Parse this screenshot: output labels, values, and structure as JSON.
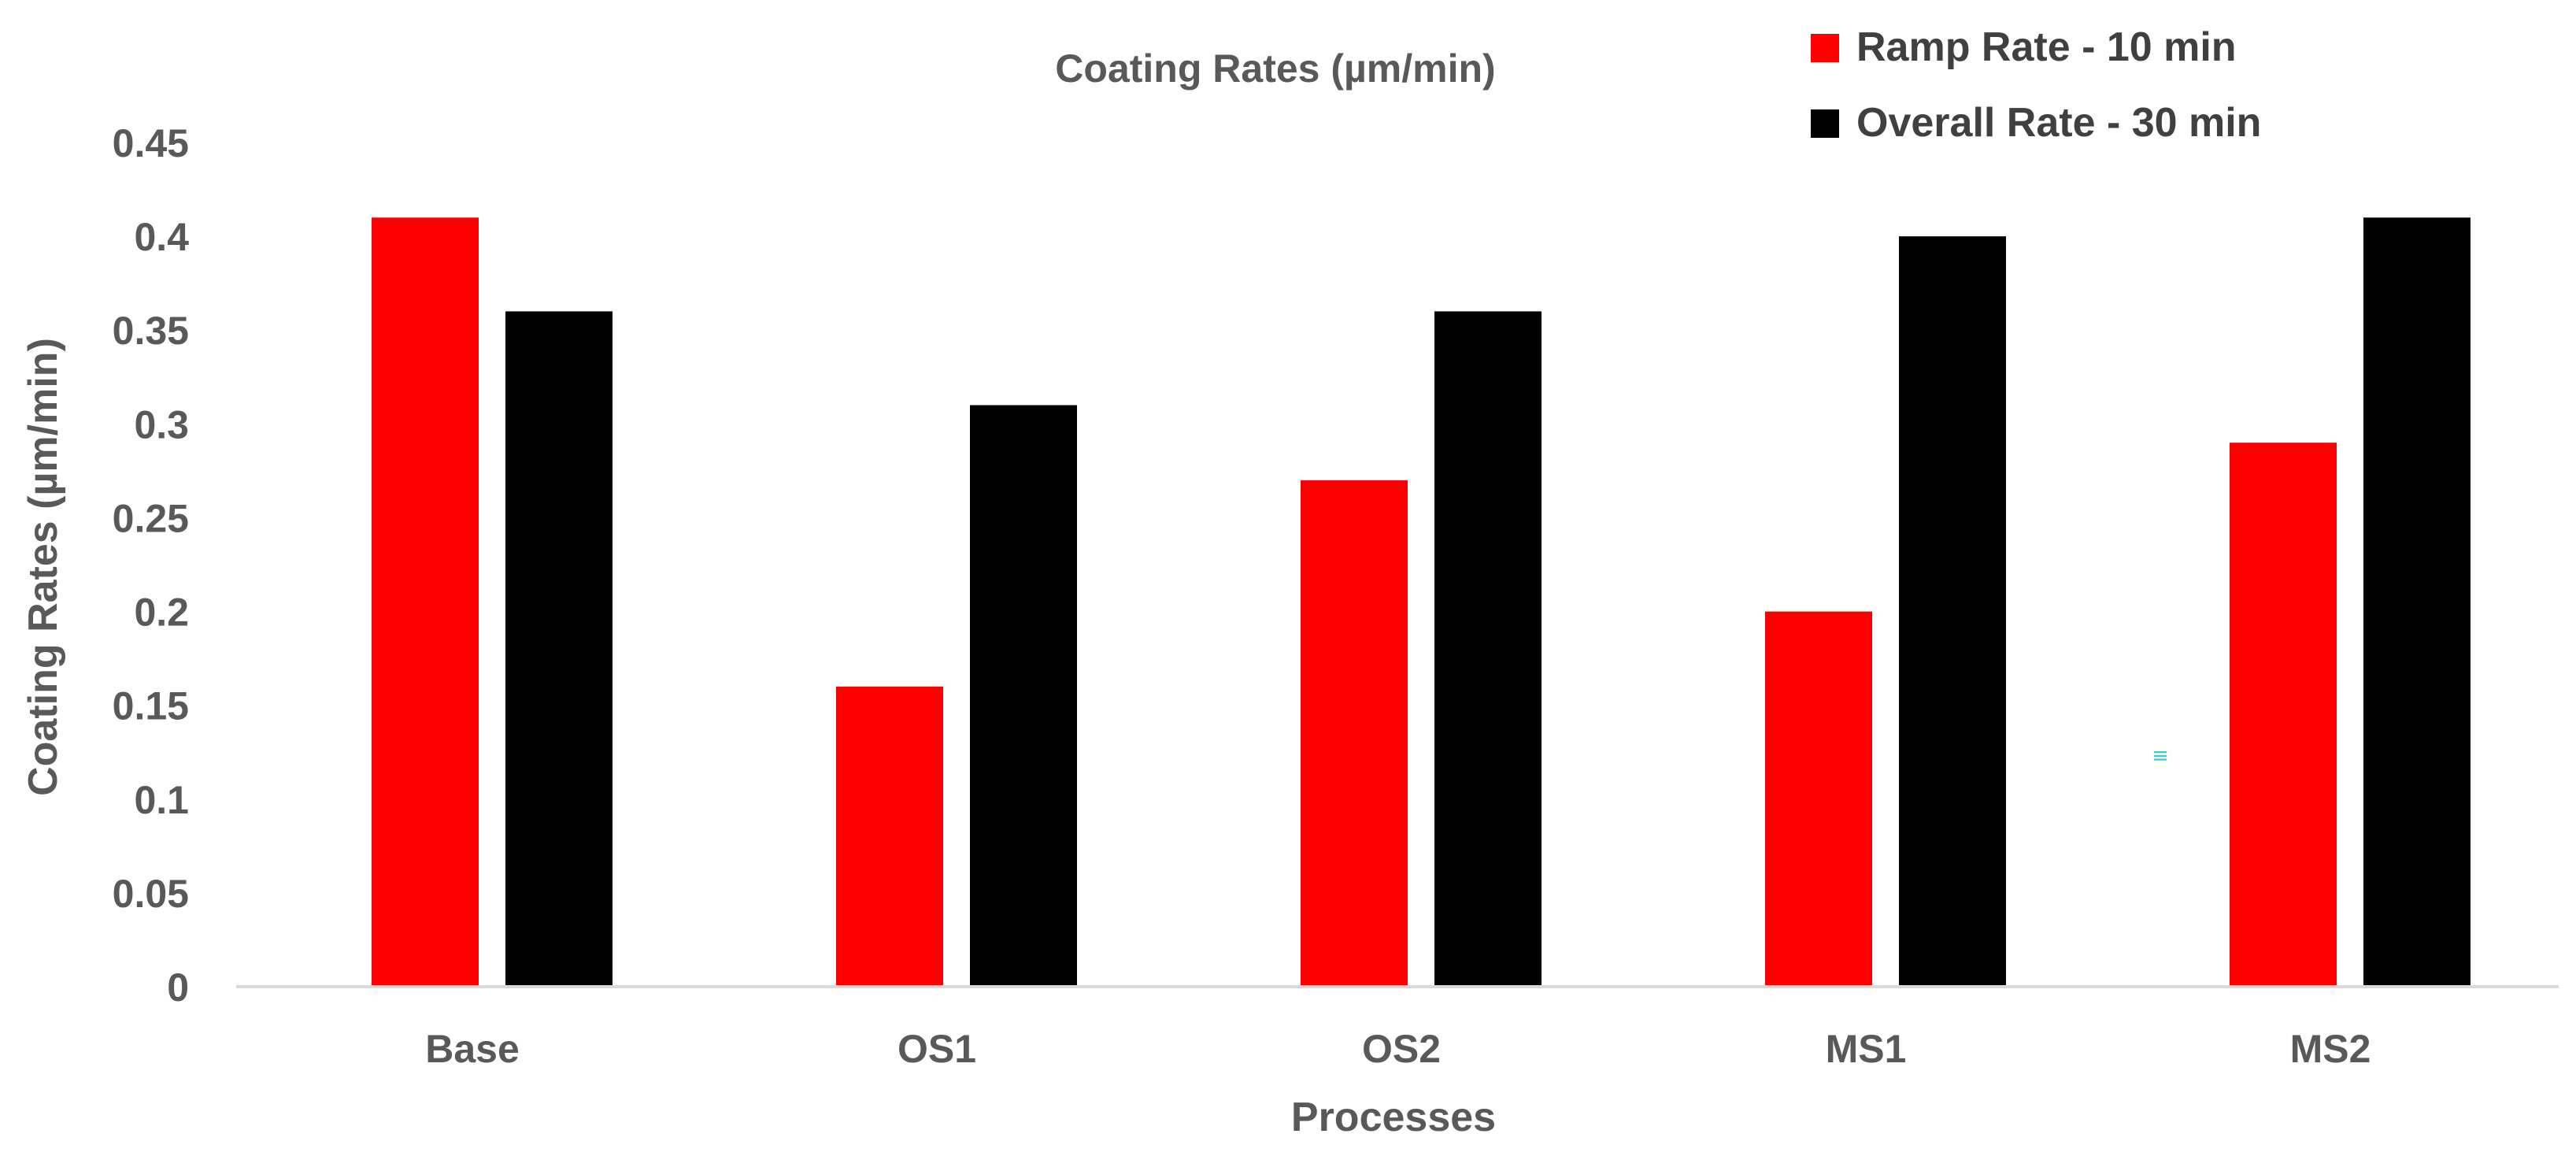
{
  "chart_data": {
    "type": "bar",
    "title": "Coating Rates (µm/min)",
    "xlabel": "Processes",
    "ylabel": "Coating Rates (µm/min)",
    "categories": [
      "Base",
      "OS1",
      "OS2",
      "MS1",
      "MS2"
    ],
    "series": [
      {
        "name": "Ramp Rate - 10 min",
        "color": "#ff0000",
        "values": [
          0.41,
          0.16,
          0.27,
          0.2,
          0.29
        ]
      },
      {
        "name": "Overall Rate - 30 min",
        "color": "#000000",
        "values": [
          0.36,
          0.31,
          0.36,
          0.4,
          0.41
        ]
      }
    ],
    "ylim": [
      0,
      0.45
    ],
    "yticks": [
      "0",
      "0.05",
      "0.1",
      "0.15",
      "0.2",
      "0.25",
      "0.3",
      "0.35",
      "0.4",
      "0.45"
    ],
    "grid": false,
    "legend_position": "top-right",
    "annotation": "≡"
  }
}
